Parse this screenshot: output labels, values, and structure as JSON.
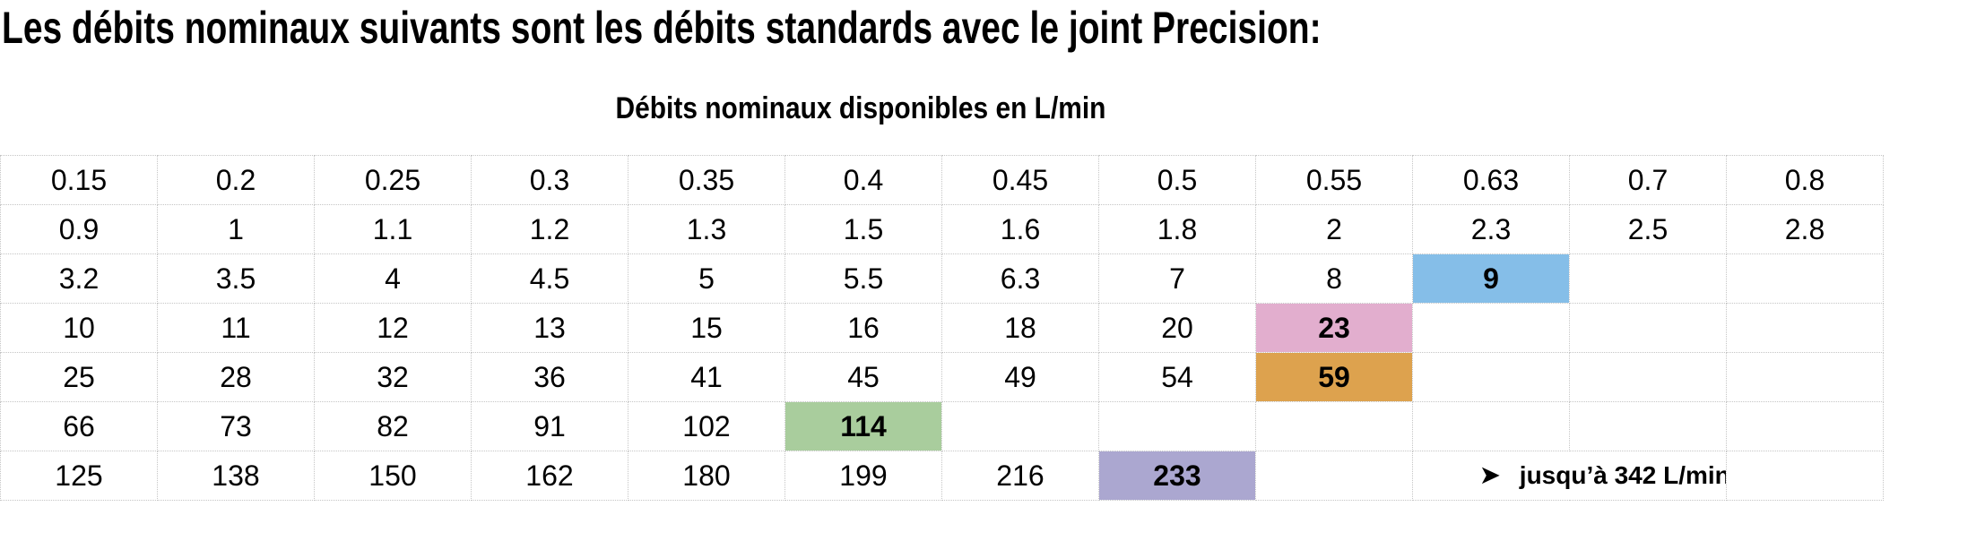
{
  "header": {
    "title": "Les débits nominaux suivants sont les débits standards avec le joint Precision:"
  },
  "table": {
    "caption": "Débits nominaux disponibles en L/min",
    "unit": "L/min",
    "columns": 12,
    "rows": [
      [
        "0.15",
        "0.2",
        "0.25",
        "0.3",
        "0.35",
        "0.4",
        "0.45",
        "0.5",
        "0.55",
        "0.63",
        "0.7",
        "0.8"
      ],
      [
        "0.9",
        "1",
        "1.1",
        "1.2",
        "1.3",
        "1.5",
        "1.6",
        "1.8",
        "2",
        "2.3",
        "2.5",
        "2.8"
      ],
      [
        "3.2",
        "3.5",
        "4",
        "4.5",
        "5",
        "5.5",
        "6.3",
        "7",
        "8",
        "9",
        "",
        ""
      ],
      [
        "10",
        "11",
        "12",
        "13",
        "15",
        "16",
        "18",
        "20",
        "23",
        "",
        "",
        ""
      ],
      [
        "25",
        "28",
        "32",
        "36",
        "41",
        "45",
        "49",
        "54",
        "59",
        "",
        "",
        ""
      ],
      [
        "66",
        "73",
        "82",
        "91",
        "102",
        "114",
        "",
        "",
        "",
        "",
        "",
        ""
      ],
      [
        "125",
        "138",
        "150",
        "162",
        "180",
        "199",
        "216",
        "233",
        "",
        "",
        "",
        ""
      ]
    ],
    "highlights": [
      {
        "row": 2,
        "col": 9,
        "value": "9",
        "name": "blue",
        "color": "#85BEE8"
      },
      {
        "row": 3,
        "col": 8,
        "value": "23",
        "name": "pink",
        "color": "#E2AECE"
      },
      {
        "row": 4,
        "col": 8,
        "value": "59",
        "name": "orange",
        "color": "#DDA24E"
      },
      {
        "row": 5,
        "col": 5,
        "value": "114",
        "name": "green",
        "color": "#A9CD9D"
      },
      {
        "row": 6,
        "col": 7,
        "value": "233",
        "name": "purple",
        "color": "#ABA7D0"
      }
    ],
    "note": {
      "arrow_icon": "➤",
      "text": "jusqu’à 342 L/min",
      "max_value": "342",
      "row": 6,
      "col_start": 9,
      "col_span": 2
    },
    "border_color": "#c5c5c5"
  }
}
